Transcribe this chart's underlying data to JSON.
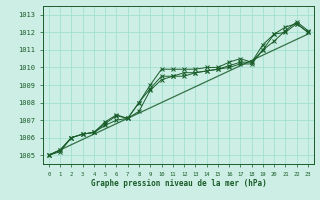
{
  "bg_color": "#cceee4",
  "grid_color": "#99ddcc",
  "line_color": "#1a5c2a",
  "xlabel": "Graphe pression niveau de la mer (hPa)",
  "x_ticks": [
    0,
    1,
    2,
    3,
    4,
    5,
    6,
    7,
    8,
    9,
    10,
    11,
    12,
    13,
    14,
    15,
    16,
    17,
    18,
    19,
    20,
    21,
    22,
    23
  ],
  "ylim": [
    1004.5,
    1013.5
  ],
  "xlim": [
    -0.5,
    23.5
  ],
  "yticks": [
    1005,
    1006,
    1007,
    1008,
    1009,
    1010,
    1011,
    1012,
    1013
  ],
  "series1": [
    1005.0,
    1005.3,
    1006.0,
    1006.2,
    1006.3,
    1006.7,
    1007.0,
    1007.1,
    1007.5,
    1008.7,
    1009.3,
    1009.5,
    1009.5,
    1009.7,
    1009.8,
    1009.9,
    1010.1,
    1010.3,
    1010.3,
    1011.0,
    1011.9,
    1012.0,
    1012.5,
    1012.0
  ],
  "series2": [
    1005.0,
    1005.3,
    1006.0,
    1006.2,
    1006.3,
    1006.9,
    1007.3,
    1007.1,
    1008.0,
    1009.0,
    1009.9,
    1009.9,
    1009.9,
    1009.9,
    1010.0,
    1010.0,
    1010.3,
    1010.5,
    1010.3,
    1011.3,
    1011.9,
    1012.3,
    1012.5,
    1012.0
  ],
  "series3": [
    1005.0,
    1005.2,
    1006.0,
    1006.2,
    1006.3,
    1006.8,
    1007.25,
    1007.1,
    1008.0,
    1008.8,
    1009.5,
    1009.5,
    1009.7,
    1009.7,
    1009.8,
    1009.9,
    1010.0,
    1010.2,
    1010.2,
    1011.0,
    1011.5,
    1012.1,
    1012.6,
    1012.1
  ],
  "trend": [
    1005.0,
    1005.3,
    1005.6,
    1005.9,
    1006.2,
    1006.5,
    1006.8,
    1007.1,
    1007.4,
    1007.7,
    1008.0,
    1008.3,
    1008.6,
    1008.9,
    1009.2,
    1009.5,
    1009.8,
    1010.1,
    1010.4,
    1010.7,
    1011.0,
    1011.3,
    1011.6,
    1011.9
  ]
}
